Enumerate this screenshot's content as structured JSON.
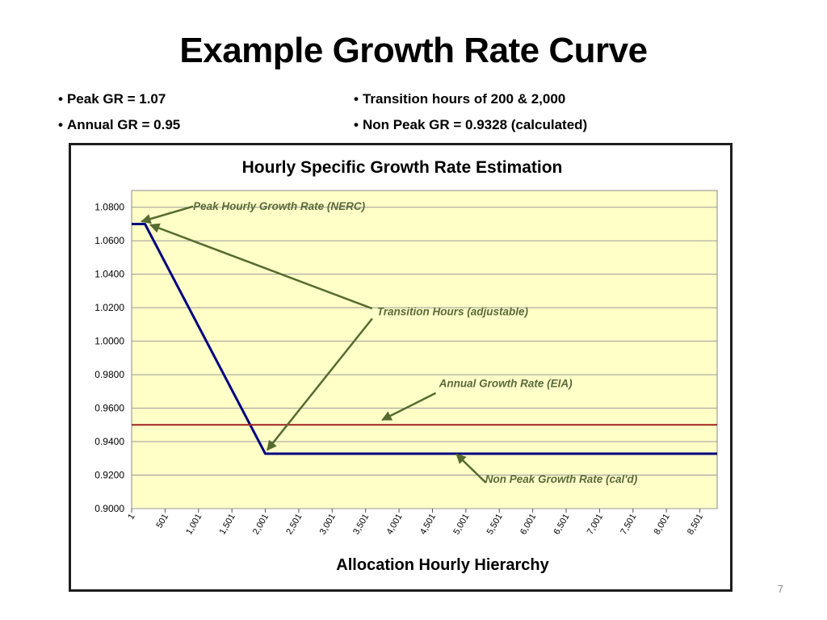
{
  "slide": {
    "title": "Example Growth Rate Curve",
    "bullets_left": [
      "Peak GR = 1.07",
      "Annual GR = 0.95"
    ],
    "bullets_right": [
      "Transition hours of 200 & 2,000",
      "Non Peak  GR = 0.9328 (calculated)"
    ],
    "page_number": "7"
  },
  "chart_data": {
    "type": "line",
    "title": "Hourly Specific Growth Rate Estimation",
    "xlabel": "Allocation Hourly Hierarchy",
    "ylabel": "",
    "xlim": [
      1,
      8760
    ],
    "ylim": [
      0.9,
      1.09
    ],
    "y_ticks": [
      0.9,
      0.92,
      0.94,
      0.96,
      0.98,
      1.0,
      1.02,
      1.04,
      1.06,
      1.08
    ],
    "y_tick_labels": [
      "0.9000",
      "0.9200",
      "0.9400",
      "0.9600",
      "0.9800",
      "1.0000",
      "1.0200",
      "1.0400",
      "1.0600",
      "1.0800"
    ],
    "x_ticks": [
      1,
      501,
      1001,
      1501,
      2001,
      2501,
      3001,
      3501,
      4001,
      4501,
      5001,
      5501,
      6001,
      6501,
      7001,
      7501,
      8001,
      8501
    ],
    "x_tick_labels": [
      "1",
      "501",
      "1,001",
      "1,501",
      "2,001",
      "2,501",
      "3,001",
      "3,501",
      "4,001",
      "4,501",
      "5,001",
      "5,501",
      "6,001",
      "6,501",
      "7,001",
      "7,501",
      "8,001",
      "8,501"
    ],
    "grid": true,
    "plot_background": "#ffffc8",
    "series": [
      {
        "color": "#000080",
        "points": [
          [
            1,
            1.07
          ],
          [
            200,
            1.07
          ],
          [
            2000,
            0.9328
          ],
          [
            8760,
            0.9328
          ]
        ]
      },
      {
        "color": "#a02020",
        "points": [
          [
            1,
            0.95
          ],
          [
            8760,
            0.95
          ]
        ]
      }
    ],
    "annotations": [
      {
        "text": "Peak Hourly Growth Rate (NERC)",
        "anchor": [
          920,
          1.0785
        ],
        "arrows": [
          {
            "from": [
              920,
              1.0805
            ],
            "to": [
              150,
              1.0715
            ]
          }
        ]
      },
      {
        "text": "Transition Hours (adjustable)",
        "anchor": [
          3670,
          1.0155
        ],
        "arrows": [
          {
            "from": [
              3600,
              1.0195
            ],
            "to": [
              280,
              1.0695
            ]
          },
          {
            "from": [
              3600,
              1.0135
            ],
            "to": [
              2030,
              0.935
            ]
          }
        ]
      },
      {
        "text": "Annual Growth Rate (EIA)",
        "anchor": [
          4600,
          0.9725
        ],
        "arrows": [
          {
            "from": [
              4550,
              0.969
            ],
            "to": [
              3750,
              0.953
            ]
          }
        ]
      },
      {
        "text": "Non Peak Growth Rate (cal'd)",
        "anchor": [
          5290,
          0.9155
        ],
        "arrows": [
          {
            "from": [
              5300,
              0.9155
            ],
            "to": [
              4860,
              0.9325
            ]
          }
        ]
      }
    ],
    "annotation_color": "#556b2f"
  }
}
